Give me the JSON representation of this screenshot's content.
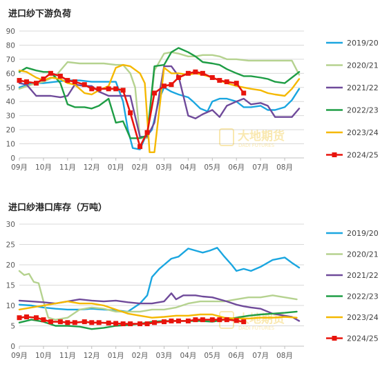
{
  "colors": {
    "2019/20": "#1aa6e0",
    "2020/21": "#b5d28f",
    "2021/22": "#6f4a9a",
    "2022/23": "#1e9d45",
    "2023/24": "#f5b800",
    "2024/25": "#e8140c",
    "grid": "#d9d9d9",
    "axis_text": "#595959",
    "watermark": "#f0c020"
  },
  "watermark": {
    "cn": "大地期货",
    "en": "DADI FUTURES"
  },
  "chart_data": [
    {
      "type": "line",
      "title": "进口纱下游负荷",
      "xlabel": "",
      "ylabel": "",
      "ylim": [
        0,
        90
      ],
      "yticks": [
        0,
        10,
        20,
        30,
        40,
        50,
        60,
        70,
        80,
        90
      ],
      "xticks": [
        "09月",
        "10月",
        "11月",
        "12月",
        "01月",
        "02月",
        "03月",
        "04月",
        "05月",
        "06月",
        "07月",
        "08月"
      ],
      "grid": "horizontal",
      "legend": "right",
      "series": [
        {
          "name": "2019/20",
          "x": [
            0,
            0.5,
            1,
            1.5,
            2,
            2.5,
            3,
            3.5,
            4,
            4.3,
            4.5,
            4.7,
            5,
            5.2,
            5.5,
            5.8,
            6,
            6.3,
            6.6,
            7,
            7.2,
            7.5,
            7.8,
            8,
            8.3,
            8.6,
            9,
            9.3,
            9.6,
            10,
            10.3,
            10.6,
            11,
            11.3,
            11.6
          ],
          "y": [
            50,
            53,
            53,
            54,
            55,
            55,
            54,
            54,
            54,
            40,
            20,
            7,
            6,
            14,
            20,
            42,
            50,
            47,
            45,
            43,
            40,
            35,
            33,
            40,
            42,
            42,
            40,
            36,
            36,
            37,
            34,
            34,
            36,
            41,
            49
          ]
        },
        {
          "name": "2020/21",
          "x": [
            0,
            0.5,
            1,
            1.5,
            2,
            2.5,
            3,
            3.5,
            4,
            4.3,
            4.6,
            4.8,
            5,
            5.3,
            5.6,
            6,
            6.3,
            6.6,
            7,
            7.3,
            7.6,
            8,
            8.3,
            8.6,
            9,
            9.5,
            10,
            10.5,
            11,
            11.3,
            11.6
          ],
          "y": [
            49,
            52,
            54,
            58,
            68,
            67,
            67,
            67,
            66,
            66,
            60,
            50,
            14,
            14,
            62,
            74,
            75,
            74,
            72,
            72,
            73,
            73,
            72,
            70,
            70,
            69,
            69,
            69,
            69,
            69,
            59
          ]
        },
        {
          "name": "2021/22",
          "x": [
            0,
            0.3,
            0.7,
            1,
            1.3,
            1.7,
            2,
            2.3,
            2.7,
            3,
            3.3,
            3.7,
            4,
            4.3,
            4.6,
            5,
            5.3,
            5.6,
            6,
            6.3,
            6.6,
            7,
            7.3,
            7.6,
            8,
            8.3,
            8.6,
            9,
            9.3,
            9.6,
            10,
            10.3,
            10.6,
            11,
            11.3,
            11.6
          ],
          "y": [
            53,
            52,
            44,
            44,
            44,
            43,
            44,
            52,
            51,
            51,
            47,
            44,
            44,
            44,
            44,
            15,
            15,
            25,
            65,
            65,
            58,
            30,
            28,
            31,
            34,
            29,
            37,
            40,
            42,
            38,
            39,
            37,
            29,
            29,
            29,
            35
          ]
        },
        {
          "name": "2022/23",
          "x": [
            0,
            0.3,
            0.7,
            1,
            1.3,
            1.7,
            2,
            2.3,
            2.7,
            3,
            3.3,
            3.7,
            4,
            4.3,
            4.6,
            5,
            5.3,
            5.6,
            6,
            6.3,
            6.6,
            7,
            7.3,
            7.6,
            8,
            8.3,
            8.6,
            9,
            9.3,
            9.6,
            10,
            10.3,
            10.6,
            11,
            11.3,
            11.6
          ],
          "y": [
            61,
            64,
            62,
            61,
            61,
            53,
            38,
            36,
            36,
            35,
            37,
            42,
            25,
            26,
            14,
            14,
            16,
            65,
            66,
            75,
            78,
            75,
            72,
            68,
            67,
            66,
            63,
            60,
            58,
            58,
            57,
            56,
            54,
            53,
            57,
            61
          ]
        },
        {
          "name": "2023/24",
          "x": [
            0,
            0.3,
            0.7,
            1,
            1.3,
            1.7,
            2,
            2.3,
            2.7,
            3,
            3.3,
            3.7,
            4,
            4.3,
            4.6,
            5,
            5.2,
            5.4,
            5.6,
            6,
            6.3,
            6.6,
            7,
            7.3,
            7.6,
            8,
            8.3,
            8.6,
            9,
            9.3,
            9.6,
            10,
            10.3,
            10.6,
            11,
            11.3,
            11.6
          ],
          "y": [
            62,
            61,
            57,
            55,
            57,
            56,
            53,
            52,
            46,
            45,
            48,
            51,
            64,
            66,
            65,
            60,
            53,
            4,
            4,
            64,
            60,
            60,
            59,
            60,
            59,
            57,
            55,
            53,
            51,
            50,
            49,
            48,
            46,
            45,
            44,
            49,
            56
          ]
        },
        {
          "name": "2024/25",
          "x": [
            0,
            0.3,
            0.7,
            1,
            1.3,
            1.7,
            2,
            2.3,
            2.7,
            3,
            3.3,
            3.7,
            4,
            4.3,
            4.6,
            5,
            5.3,
            5.6,
            6,
            6.3,
            6.6,
            7,
            7.3,
            7.6,
            8,
            8.3,
            8.6,
            9,
            9.3
          ],
          "y": [
            55,
            54,
            53,
            56,
            60,
            58,
            55,
            54,
            52,
            49,
            49,
            49,
            49,
            48,
            32,
            8,
            18,
            46,
            51,
            52,
            57,
            60,
            61,
            60,
            57,
            55,
            54,
            53,
            46
          ]
        }
      ]
    },
    {
      "type": "line",
      "title": "进口纱港口库存（万吨）",
      "xlabel": "",
      "ylabel": "",
      "ylim": [
        0,
        30
      ],
      "yticks": [
        0,
        5,
        10,
        15,
        20,
        25,
        30
      ],
      "xticks": [
        "09月",
        "10月",
        "11月",
        "12月",
        "01月",
        "02月",
        "03月",
        "04月",
        "05月",
        "06月",
        "07月",
        "08月"
      ],
      "grid": "horizontal",
      "legend": "right",
      "series": [
        {
          "name": "2019/20",
          "x": [
            0,
            0.5,
            1,
            1.5,
            2,
            2.5,
            3,
            3.5,
            4,
            4.5,
            5,
            5.3,
            5.5,
            5.8,
            6,
            6.3,
            6.6,
            7,
            7.3,
            7.6,
            7.9,
            8.2,
            8.5,
            8.8,
            9,
            9.3,
            9.6,
            10,
            10.5,
            11,
            11.3,
            11.6
          ],
          "y": [
            10.2,
            10,
            9.5,
            9.2,
            9,
            9,
            9.2,
            9,
            8.8,
            8.5,
            10.5,
            12.5,
            17,
            19,
            20,
            21.5,
            22,
            24,
            23.5,
            23,
            23.5,
            24.2,
            22,
            20,
            18.5,
            19,
            18.5,
            19.5,
            21.2,
            21.8,
            20.5,
            19.3
          ]
        },
        {
          "name": "2020/21",
          "x": [
            0,
            0.2,
            0.4,
            0.6,
            0.8,
            1,
            1.2,
            1.5,
            2,
            2.5,
            3,
            3.5,
            4,
            4.5,
            5,
            5.5,
            6,
            6.5,
            7,
            7.5,
            8,
            8.5,
            9,
            9.5,
            10,
            10.5,
            11,
            11.5
          ],
          "y": [
            18.5,
            17.5,
            17.8,
            15.8,
            15.5,
            11,
            7,
            6.5,
            7,
            9,
            9.5,
            9.2,
            8.5,
            8.5,
            8.5,
            9,
            9,
            9.5,
            10.5,
            11,
            11,
            11,
            11.5,
            12,
            12,
            12.5,
            12,
            11.5
          ]
        },
        {
          "name": "2021/22",
          "x": [
            0,
            0.5,
            1,
            1.5,
            2,
            2.5,
            3,
            3.5,
            4,
            4.5,
            5,
            5.5,
            6,
            6.3,
            6.5,
            6.8,
            7,
            7.3,
            7.6,
            8,
            8.3,
            8.6,
            9,
            9.3,
            9.6,
            10,
            10.5,
            11,
            11.3,
            11.6
          ],
          "y": [
            11.2,
            11,
            10.8,
            10.5,
            11,
            11.5,
            11.2,
            11,
            11.2,
            10.8,
            10.5,
            10.5,
            11,
            13,
            11.5,
            12.5,
            12.5,
            12.5,
            12.2,
            12,
            11.5,
            11,
            10.2,
            9.8,
            9.5,
            9.2,
            8,
            7.5,
            7.2,
            6.2
          ]
        },
        {
          "name": "2022/23",
          "x": [
            0,
            0.5,
            1,
            1.5,
            2,
            2.5,
            3,
            3.5,
            4,
            4.5,
            5,
            5.5,
            6,
            6.5,
            7,
            7.5,
            8,
            8.5,
            9,
            9.5,
            10,
            10.5,
            11,
            11.5
          ],
          "y": [
            5.8,
            6.5,
            6,
            5,
            5,
            4.8,
            4.2,
            4.5,
            5,
            5.2,
            5.5,
            6,
            6.2,
            6.2,
            6.2,
            6.2,
            6,
            6.5,
            7,
            7.5,
            7.8,
            8,
            8.2,
            8.5
          ]
        },
        {
          "name": "2023/24",
          "x": [
            0,
            0.5,
            1,
            1.5,
            2,
            2.5,
            3,
            3.5,
            4,
            4.5,
            5,
            5.5,
            6,
            6.5,
            7,
            7.5,
            8,
            8.5,
            9,
            9.5,
            10,
            10.5,
            11,
            11.5
          ],
          "y": [
            9,
            9.5,
            10,
            10.5,
            11,
            10.5,
            10.5,
            10,
            9,
            8,
            7.5,
            7,
            7.2,
            7.5,
            7.5,
            7.8,
            7.8,
            7,
            6.8,
            6.8,
            7,
            7,
            7.2,
            7
          ]
        },
        {
          "name": "2024/25",
          "x": [
            0,
            0.3,
            0.7,
            1,
            1.3,
            1.7,
            2,
            2.3,
            2.7,
            3,
            3.3,
            3.7,
            4,
            4.3,
            4.6,
            5,
            5.3,
            5.6,
            6,
            6.3,
            6.6,
            7,
            7.3,
            7.6,
            8,
            8.3,
            8.6,
            9,
            9.3
          ],
          "y": [
            7,
            7.2,
            7,
            6.5,
            6,
            6,
            5.8,
            5.8,
            6,
            5.8,
            5.8,
            5.7,
            5.6,
            5.5,
            5.5,
            5.5,
            5.5,
            5.8,
            6,
            6.2,
            6.2,
            6.2,
            6.5,
            6.5,
            6.5,
            6.5,
            6.5,
            6.3,
            6
          ]
        }
      ]
    }
  ]
}
